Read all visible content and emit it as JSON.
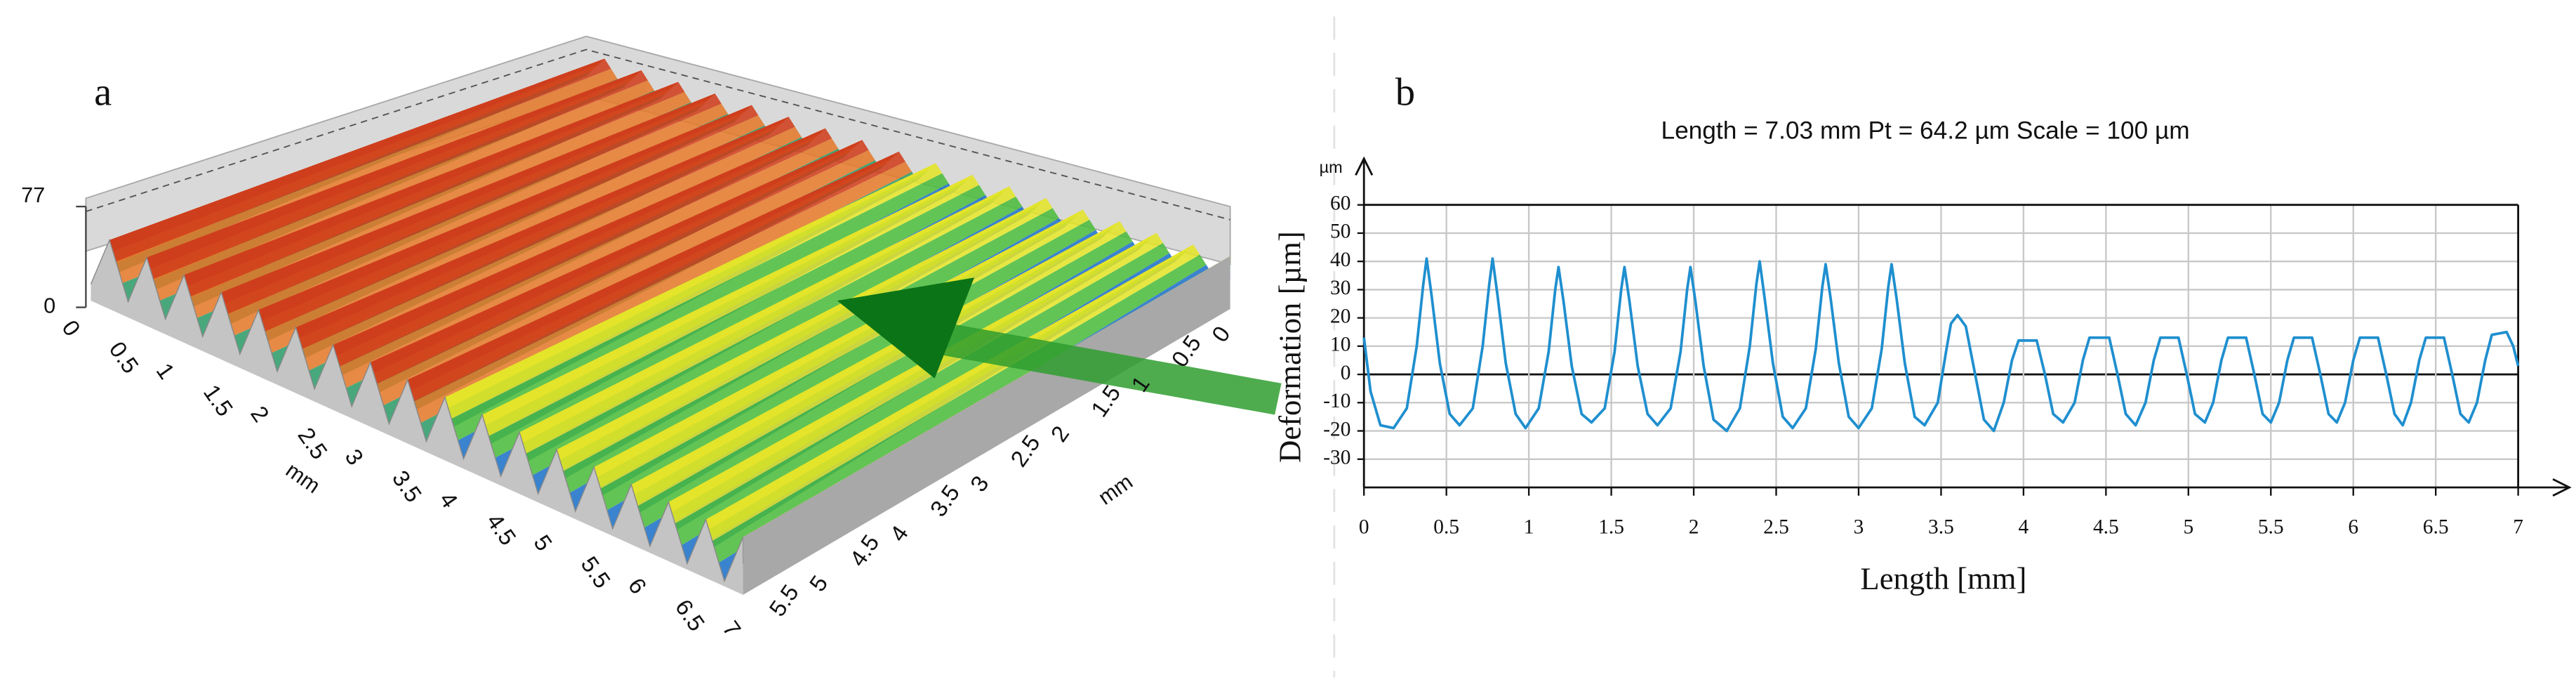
{
  "panel_a": {
    "label": "a",
    "z_ticks": [
      "77",
      "0"
    ],
    "x_axis": {
      "title": "mm",
      "ticks": [
        "0",
        "0.5",
        "1",
        "1.5",
        "2",
        "2.5",
        "3",
        "3.5",
        "4",
        "4.5",
        "5",
        "5.5",
        "6",
        "6.5",
        "7"
      ]
    },
    "y_axis": {
      "title": "mm",
      "ticks": [
        "5.5",
        "5",
        "4.5",
        "4",
        "3.5",
        "3",
        "2.5",
        "2",
        "1.5",
        "1",
        "0.5",
        "0"
      ]
    }
  },
  "chart_data": {
    "type": "line",
    "panel_label": "b",
    "title": "Length = 7.03 mm Pt = 64.2 µm Scale = 100 µm",
    "y_unit": "µm",
    "x_label": "Length [mm]",
    "y_label": "Deformation  [µm]",
    "color": "#1f8fcf",
    "grid": true,
    "xlim": [
      0,
      7
    ],
    "xticks": [
      0,
      0.5,
      1,
      1.5,
      2,
      2.5,
      3,
      3.5,
      4,
      4.5,
      5,
      5.5,
      6,
      6.5,
      7
    ],
    "ylim": [
      -40,
      60
    ],
    "yticks": [
      -30,
      -20,
      -10,
      0,
      10,
      20,
      30,
      40,
      50,
      60
    ],
    "x": [
      0,
      0.04,
      0.1,
      0.18,
      0.26,
      0.32,
      0.36,
      0.38,
      0.41,
      0.46,
      0.52,
      0.58,
      0.66,
      0.72,
      0.76,
      0.78,
      0.81,
      0.86,
      0.92,
      0.98,
      1.06,
      1.12,
      1.16,
      1.18,
      1.21,
      1.26,
      1.32,
      1.38,
      1.46,
      1.52,
      1.56,
      1.58,
      1.61,
      1.66,
      1.72,
      1.78,
      1.86,
      1.92,
      1.96,
      1.98,
      2.01,
      2.06,
      2.12,
      2.2,
      2.28,
      2.34,
      2.38,
      2.4,
      2.43,
      2.48,
      2.54,
      2.6,
      2.68,
      2.74,
      2.78,
      2.8,
      2.83,
      2.88,
      2.94,
      3.0,
      3.08,
      3.14,
      3.18,
      3.2,
      3.23,
      3.28,
      3.34,
      3.4,
      3.48,
      3.53,
      3.56,
      3.6,
      3.65,
      3.7,
      3.76,
      3.82,
      3.88,
      3.93,
      3.97,
      4.08,
      4.13,
      4.18,
      4.24,
      4.31,
      4.36,
      4.4,
      4.52,
      4.57,
      4.62,
      4.68,
      4.74,
      4.79,
      4.83,
      4.94,
      4.99,
      5.04,
      5.1,
      5.15,
      5.2,
      5.24,
      5.35,
      5.4,
      5.45,
      5.5,
      5.55,
      5.6,
      5.64,
      5.75,
      5.8,
      5.85,
      5.9,
      5.95,
      6.0,
      6.04,
      6.15,
      6.2,
      6.25,
      6.3,
      6.35,
      6.4,
      6.44,
      6.55,
      6.6,
      6.65,
      6.7,
      6.75,
      6.8,
      6.84,
      6.93,
      6.97,
      7.0
    ],
    "values": [
      13,
      -6,
      -18,
      -19,
      -12,
      10,
      32,
      41,
      28,
      4,
      -14,
      -18,
      -12,
      10,
      32,
      41,
      28,
      4,
      -14,
      -19,
      -12,
      8,
      30,
      38,
      26,
      3,
      -14,
      -17,
      -12,
      8,
      30,
      38,
      26,
      3,
      -14,
      -18,
      -12,
      8,
      30,
      38,
      26,
      3,
      -16,
      -20,
      -12,
      10,
      32,
      40,
      27,
      4,
      -15,
      -19,
      -12,
      9,
      31,
      39,
      27,
      4,
      -15,
      -19,
      -12,
      9,
      31,
      39,
      27,
      4,
      -15,
      -18,
      -10,
      8,
      18,
      21,
      17,
      2,
      -16,
      -20,
      -10,
      5,
      12,
      12,
      0,
      -14,
      -17,
      -10,
      5,
      13,
      13,
      0,
      -14,
      -18,
      -10,
      5,
      13,
      13,
      0,
      -14,
      -17,
      -10,
      5,
      13,
      13,
      0,
      -14,
      -17,
      -10,
      5,
      13,
      13,
      0,
      -14,
      -17,
      -10,
      5,
      13,
      13,
      0,
      -14,
      -18,
      -10,
      5,
      13,
      13,
      0,
      -14,
      -17,
      -10,
      5,
      14,
      15,
      10,
      3
    ]
  }
}
